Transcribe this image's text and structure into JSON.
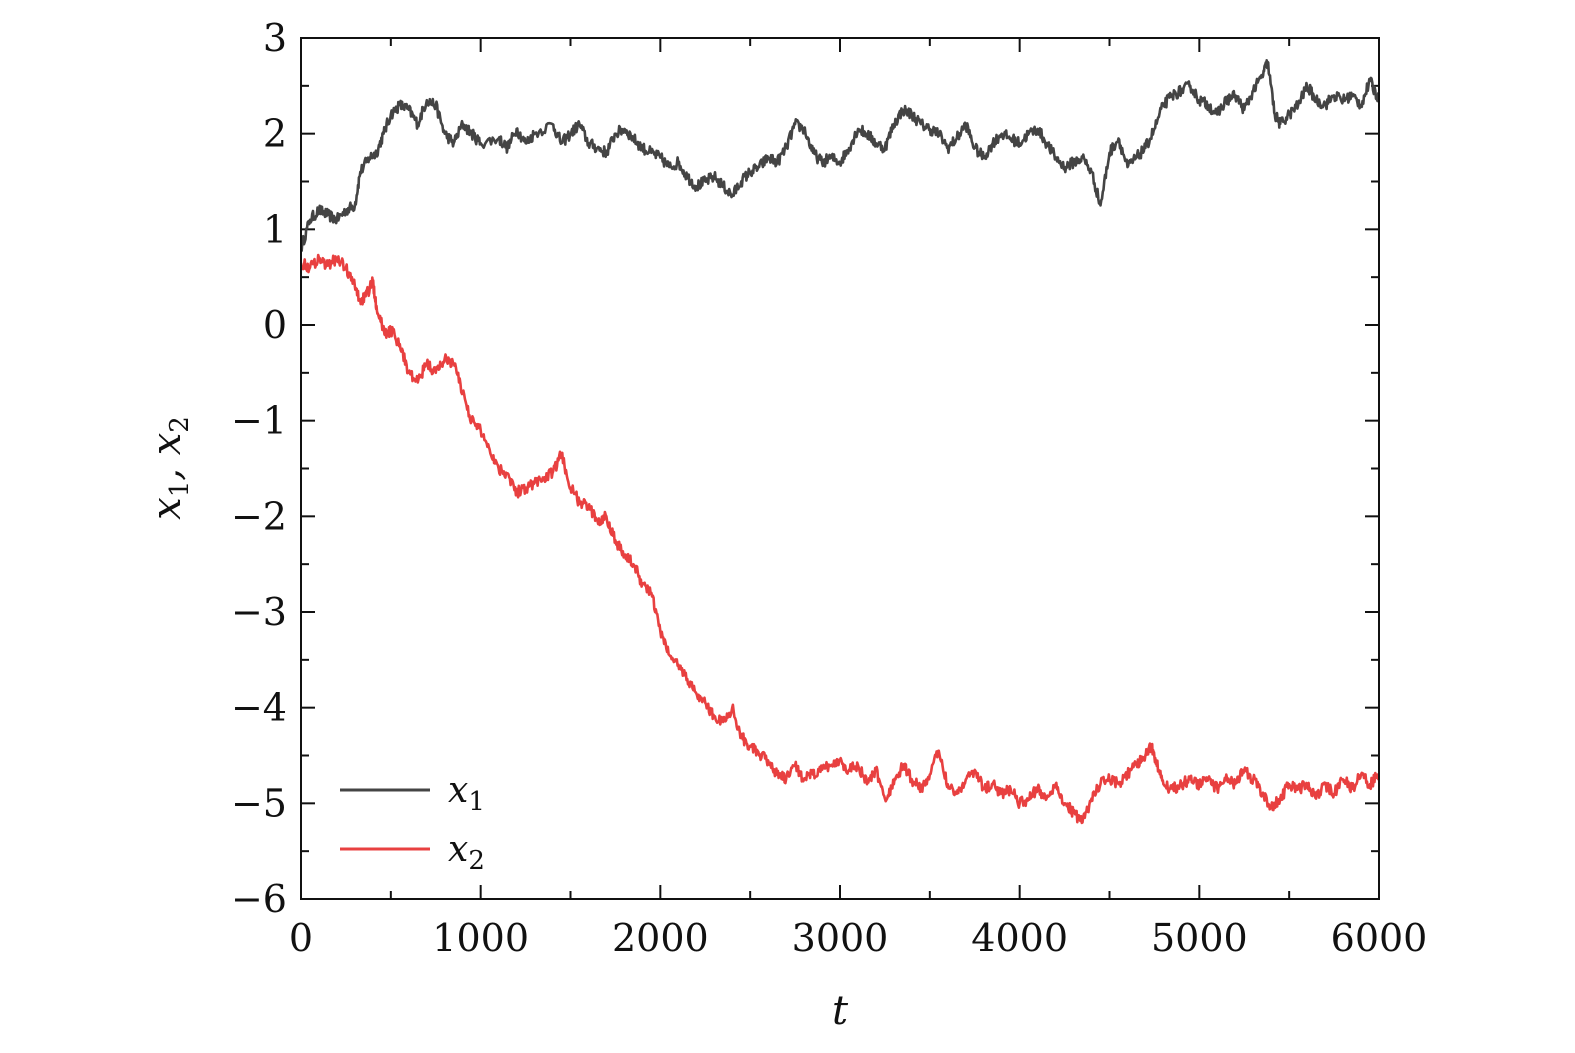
{
  "chart_data": {
    "type": "line",
    "xlabel": "t",
    "ylabel": {
      "prefix": "x",
      "sub1": "1",
      "sep": ", x",
      "sub2": "2"
    },
    "xlim": [
      0,
      6000
    ],
    "ylim": [
      -6,
      3
    ],
    "xticks": [
      0,
      1000,
      2000,
      3000,
      4000,
      5000,
      6000
    ],
    "yticks": [
      3,
      2,
      1,
      0,
      -1,
      -2,
      -3,
      -4,
      -5,
      -6
    ],
    "xtick_labels": [
      "0",
      "1000",
      "2000",
      "3000",
      "4000",
      "5000",
      "6000"
    ],
    "ytick_labels": [
      "3",
      "2",
      "1",
      "0",
      "−1",
      "−2",
      "−3",
      "−4",
      "−5",
      "−6"
    ],
    "grid": false,
    "legend_position": "bottom-left",
    "series": [
      {
        "name": "x1",
        "legend_base": "x",
        "legend_sub": "1",
        "color": "#444444",
        "points": [
          [
            0,
            0.8
          ],
          [
            50,
            1.1
          ],
          [
            100,
            1.2
          ],
          [
            150,
            1.15
          ],
          [
            200,
            1.1
          ],
          [
            250,
            1.2
          ],
          [
            300,
            1.25
          ],
          [
            330,
            1.6
          ],
          [
            380,
            1.75
          ],
          [
            420,
            1.8
          ],
          [
            460,
            2.0
          ],
          [
            500,
            2.2
          ],
          [
            550,
            2.3
          ],
          [
            600,
            2.25
          ],
          [
            650,
            2.1
          ],
          [
            700,
            2.35
          ],
          [
            750,
            2.3
          ],
          [
            800,
            2.0
          ],
          [
            850,
            1.9
          ],
          [
            900,
            2.1
          ],
          [
            950,
            2.0
          ],
          [
            1000,
            1.9
          ],
          [
            1100,
            1.95
          ],
          [
            1150,
            1.85
          ],
          [
            1200,
            2.05
          ],
          [
            1250,
            1.9
          ],
          [
            1300,
            2.0
          ],
          [
            1400,
            2.1
          ],
          [
            1450,
            1.9
          ],
          [
            1500,
            2.0
          ],
          [
            1550,
            2.1
          ],
          [
            1600,
            1.9
          ],
          [
            1650,
            1.85
          ],
          [
            1700,
            1.8
          ],
          [
            1750,
            2.0
          ],
          [
            1800,
            2.05
          ],
          [
            1850,
            1.95
          ],
          [
            1900,
            1.85
          ],
          [
            1950,
            1.8
          ],
          [
            2000,
            1.75
          ],
          [
            2050,
            1.65
          ],
          [
            2100,
            1.7
          ],
          [
            2150,
            1.55
          ],
          [
            2200,
            1.45
          ],
          [
            2250,
            1.5
          ],
          [
            2300,
            1.55
          ],
          [
            2350,
            1.45
          ],
          [
            2400,
            1.35
          ],
          [
            2450,
            1.5
          ],
          [
            2500,
            1.6
          ],
          [
            2550,
            1.65
          ],
          [
            2600,
            1.75
          ],
          [
            2650,
            1.7
          ],
          [
            2700,
            1.85
          ],
          [
            2750,
            2.1
          ],
          [
            2800,
            2.05
          ],
          [
            2850,
            1.8
          ],
          [
            2900,
            1.7
          ],
          [
            2950,
            1.75
          ],
          [
            3000,
            1.7
          ],
          [
            3050,
            1.85
          ],
          [
            3100,
            2.05
          ],
          [
            3150,
            2.0
          ],
          [
            3200,
            1.9
          ],
          [
            3250,
            1.85
          ],
          [
            3300,
            2.1
          ],
          [
            3350,
            2.25
          ],
          [
            3400,
            2.2
          ],
          [
            3450,
            2.1
          ],
          [
            3500,
            2.05
          ],
          [
            3550,
            2.0
          ],
          [
            3600,
            1.85
          ],
          [
            3650,
            1.95
          ],
          [
            3700,
            2.1
          ],
          [
            3750,
            1.85
          ],
          [
            3800,
            1.75
          ],
          [
            3850,
            1.9
          ],
          [
            3900,
            2.0
          ],
          [
            3950,
            1.95
          ],
          [
            4000,
            1.9
          ],
          [
            4050,
            2.0
          ],
          [
            4100,
            2.05
          ],
          [
            4150,
            1.9
          ],
          [
            4200,
            1.75
          ],
          [
            4250,
            1.65
          ],
          [
            4300,
            1.7
          ],
          [
            4350,
            1.75
          ],
          [
            4400,
            1.6
          ],
          [
            4450,
            1.25
          ],
          [
            4500,
            1.8
          ],
          [
            4550,
            1.95
          ],
          [
            4600,
            1.65
          ],
          [
            4650,
            1.75
          ],
          [
            4700,
            1.85
          ],
          [
            4750,
            2.05
          ],
          [
            4800,
            2.3
          ],
          [
            4850,
            2.4
          ],
          [
            4900,
            2.45
          ],
          [
            4950,
            2.5
          ],
          [
            5000,
            2.35
          ],
          [
            5050,
            2.3
          ],
          [
            5100,
            2.2
          ],
          [
            5150,
            2.35
          ],
          [
            5200,
            2.4
          ],
          [
            5250,
            2.25
          ],
          [
            5300,
            2.45
          ],
          [
            5350,
            2.6
          ],
          [
            5380,
            2.75
          ],
          [
            5420,
            2.2
          ],
          [
            5450,
            2.1
          ],
          [
            5500,
            2.2
          ],
          [
            5550,
            2.3
          ],
          [
            5600,
            2.5
          ],
          [
            5650,
            2.35
          ],
          [
            5700,
            2.3
          ],
          [
            5750,
            2.4
          ],
          [
            5800,
            2.35
          ],
          [
            5850,
            2.4
          ],
          [
            5900,
            2.3
          ],
          [
            5950,
            2.55
          ],
          [
            6000,
            2.35
          ]
        ]
      },
      {
        "name": "x2",
        "legend_base": "x",
        "legend_sub": "2",
        "color": "#e84040",
        "points": [
          [
            0,
            0.65
          ],
          [
            50,
            0.6
          ],
          [
            100,
            0.7
          ],
          [
            150,
            0.62
          ],
          [
            200,
            0.7
          ],
          [
            250,
            0.6
          ],
          [
            300,
            0.4
          ],
          [
            330,
            0.25
          ],
          [
            360,
            0.3
          ],
          [
            400,
            0.45
          ],
          [
            420,
            0.2
          ],
          [
            450,
            0.0
          ],
          [
            480,
            -0.1
          ],
          [
            500,
            -0.05
          ],
          [
            550,
            -0.2
          ],
          [
            600,
            -0.5
          ],
          [
            650,
            -0.6
          ],
          [
            700,
            -0.4
          ],
          [
            750,
            -0.5
          ],
          [
            800,
            -0.35
          ],
          [
            850,
            -0.4
          ],
          [
            900,
            -0.7
          ],
          [
            950,
            -1.0
          ],
          [
            1000,
            -1.1
          ],
          [
            1050,
            -1.3
          ],
          [
            1100,
            -1.5
          ],
          [
            1150,
            -1.55
          ],
          [
            1200,
            -1.75
          ],
          [
            1250,
            -1.7
          ],
          [
            1300,
            -1.65
          ],
          [
            1350,
            -1.6
          ],
          [
            1400,
            -1.55
          ],
          [
            1450,
            -1.35
          ],
          [
            1500,
            -1.7
          ],
          [
            1550,
            -1.85
          ],
          [
            1600,
            -1.9
          ],
          [
            1650,
            -2.05
          ],
          [
            1700,
            -2.0
          ],
          [
            1750,
            -2.25
          ],
          [
            1800,
            -2.4
          ],
          [
            1850,
            -2.5
          ],
          [
            1900,
            -2.7
          ],
          [
            1950,
            -2.8
          ],
          [
            2000,
            -3.2
          ],
          [
            2050,
            -3.45
          ],
          [
            2100,
            -3.55
          ],
          [
            2150,
            -3.7
          ],
          [
            2200,
            -3.85
          ],
          [
            2250,
            -3.95
          ],
          [
            2300,
            -4.1
          ],
          [
            2350,
            -4.15
          ],
          [
            2400,
            -4.0
          ],
          [
            2450,
            -4.3
          ],
          [
            2500,
            -4.4
          ],
          [
            2550,
            -4.5
          ],
          [
            2600,
            -4.55
          ],
          [
            2650,
            -4.7
          ],
          [
            2700,
            -4.75
          ],
          [
            2750,
            -4.6
          ],
          [
            2800,
            -4.75
          ],
          [
            2850,
            -4.7
          ],
          [
            2900,
            -4.65
          ],
          [
            2950,
            -4.6
          ],
          [
            3000,
            -4.55
          ],
          [
            3050,
            -4.65
          ],
          [
            3100,
            -4.6
          ],
          [
            3150,
            -4.8
          ],
          [
            3200,
            -4.65
          ],
          [
            3250,
            -4.95
          ],
          [
            3300,
            -4.8
          ],
          [
            3350,
            -4.6
          ],
          [
            3400,
            -4.75
          ],
          [
            3450,
            -4.85
          ],
          [
            3500,
            -4.7
          ],
          [
            3550,
            -4.45
          ],
          [
            3600,
            -4.8
          ],
          [
            3650,
            -4.9
          ],
          [
            3700,
            -4.75
          ],
          [
            3750,
            -4.65
          ],
          [
            3800,
            -4.85
          ],
          [
            3850,
            -4.8
          ],
          [
            3900,
            -4.9
          ],
          [
            3950,
            -4.85
          ],
          [
            4000,
            -5.0
          ],
          [
            4050,
            -4.95
          ],
          [
            4100,
            -4.85
          ],
          [
            4150,
            -4.95
          ],
          [
            4200,
            -4.8
          ],
          [
            4250,
            -5.0
          ],
          [
            4300,
            -5.1
          ],
          [
            4350,
            -5.2
          ],
          [
            4400,
            -4.95
          ],
          [
            4450,
            -4.8
          ],
          [
            4500,
            -4.75
          ],
          [
            4550,
            -4.8
          ],
          [
            4600,
            -4.7
          ],
          [
            4650,
            -4.6
          ],
          [
            4700,
            -4.5
          ],
          [
            4730,
            -4.4
          ],
          [
            4760,
            -4.55
          ],
          [
            4800,
            -4.8
          ],
          [
            4850,
            -4.85
          ],
          [
            4900,
            -4.8
          ],
          [
            4950,
            -4.75
          ],
          [
            5000,
            -4.8
          ],
          [
            5050,
            -4.75
          ],
          [
            5100,
            -4.85
          ],
          [
            5150,
            -4.7
          ],
          [
            5200,
            -4.8
          ],
          [
            5250,
            -4.65
          ],
          [
            5300,
            -4.75
          ],
          [
            5350,
            -4.9
          ],
          [
            5400,
            -5.05
          ],
          [
            5450,
            -4.95
          ],
          [
            5500,
            -4.8
          ],
          [
            5550,
            -4.85
          ],
          [
            5600,
            -4.8
          ],
          [
            5650,
            -4.95
          ],
          [
            5700,
            -4.8
          ],
          [
            5750,
            -4.9
          ],
          [
            5800,
            -4.75
          ],
          [
            5850,
            -4.85
          ],
          [
            5900,
            -4.7
          ],
          [
            5950,
            -4.8
          ],
          [
            6000,
            -4.7
          ]
        ]
      }
    ]
  }
}
